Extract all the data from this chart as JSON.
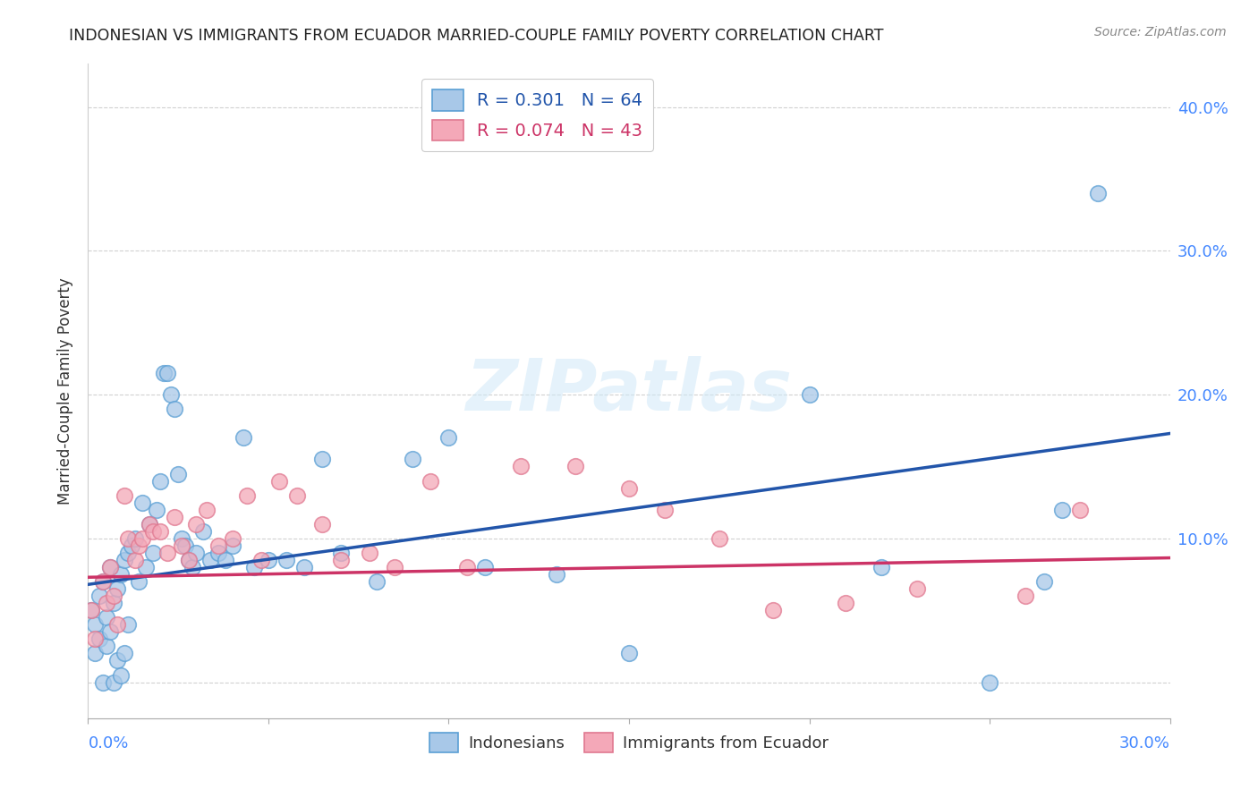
{
  "title": "INDONESIAN VS IMMIGRANTS FROM ECUADOR MARRIED-COUPLE FAMILY POVERTY CORRELATION CHART",
  "source": "Source: ZipAtlas.com",
  "ylabel": "Married-Couple Family Poverty",
  "xlim": [
    0,
    0.3
  ],
  "ylim": [
    -0.025,
    0.43
  ],
  "legend1_label": "R = 0.301   N = 64",
  "legend2_label": "R = 0.074   N = 43",
  "legend_bottom_label1": "Indonesians",
  "legend_bottom_label2": "Immigrants from Ecuador",
  "blue_color": "#a8c8e8",
  "pink_color": "#f4a8b8",
  "blue_edge_color": "#5a9fd4",
  "pink_edge_color": "#e07890",
  "blue_line_color": "#2255aa",
  "pink_line_color": "#cc3366",
  "watermark": "ZIPatlas",
  "indonesian_x": [
    0.001,
    0.002,
    0.002,
    0.003,
    0.003,
    0.004,
    0.004,
    0.005,
    0.005,
    0.006,
    0.006,
    0.007,
    0.007,
    0.008,
    0.008,
    0.009,
    0.009,
    0.01,
    0.01,
    0.011,
    0.011,
    0.012,
    0.013,
    0.014,
    0.015,
    0.016,
    0.017,
    0.018,
    0.019,
    0.02,
    0.021,
    0.022,
    0.023,
    0.024,
    0.025,
    0.026,
    0.027,
    0.028,
    0.029,
    0.03,
    0.032,
    0.034,
    0.036,
    0.038,
    0.04,
    0.043,
    0.046,
    0.05,
    0.055,
    0.06,
    0.065,
    0.07,
    0.08,
    0.09,
    0.1,
    0.11,
    0.13,
    0.15,
    0.2,
    0.22,
    0.25,
    0.265,
    0.27,
    0.28
  ],
  "indonesian_y": [
    0.05,
    0.04,
    0.02,
    0.06,
    0.03,
    0.07,
    0.0,
    0.045,
    0.025,
    0.08,
    0.035,
    0.055,
    0.0,
    0.065,
    0.015,
    0.075,
    0.005,
    0.085,
    0.02,
    0.09,
    0.04,
    0.095,
    0.1,
    0.07,
    0.125,
    0.08,
    0.11,
    0.09,
    0.12,
    0.14,
    0.215,
    0.215,
    0.2,
    0.19,
    0.145,
    0.1,
    0.095,
    0.085,
    0.08,
    0.09,
    0.105,
    0.085,
    0.09,
    0.085,
    0.095,
    0.17,
    0.08,
    0.085,
    0.085,
    0.08,
    0.155,
    0.09,
    0.07,
    0.155,
    0.17,
    0.08,
    0.075,
    0.02,
    0.2,
    0.08,
    0.0,
    0.07,
    0.12,
    0.34
  ],
  "ecuador_x": [
    0.001,
    0.002,
    0.004,
    0.005,
    0.006,
    0.007,
    0.008,
    0.01,
    0.011,
    0.013,
    0.014,
    0.015,
    0.017,
    0.018,
    0.02,
    0.022,
    0.024,
    0.026,
    0.028,
    0.03,
    0.033,
    0.036,
    0.04,
    0.044,
    0.048,
    0.053,
    0.058,
    0.065,
    0.07,
    0.078,
    0.085,
    0.095,
    0.105,
    0.12,
    0.135,
    0.15,
    0.16,
    0.175,
    0.19,
    0.21,
    0.23,
    0.26,
    0.275
  ],
  "ecuador_y": [
    0.05,
    0.03,
    0.07,
    0.055,
    0.08,
    0.06,
    0.04,
    0.13,
    0.1,
    0.085,
    0.095,
    0.1,
    0.11,
    0.105,
    0.105,
    0.09,
    0.115,
    0.095,
    0.085,
    0.11,
    0.12,
    0.095,
    0.1,
    0.13,
    0.085,
    0.14,
    0.13,
    0.11,
    0.085,
    0.09,
    0.08,
    0.14,
    0.08,
    0.15,
    0.15,
    0.135,
    0.12,
    0.1,
    0.05,
    0.055,
    0.065,
    0.06,
    0.12
  ],
  "blue_intercept": 0.068,
  "blue_slope": 0.35,
  "pink_intercept": 0.073,
  "pink_slope": 0.045,
  "yticks": [
    0.0,
    0.1,
    0.2,
    0.3,
    0.4
  ],
  "ytick_labels_right": [
    "",
    "10.0%",
    "20.0%",
    "30.0%",
    "40.0%"
  ]
}
